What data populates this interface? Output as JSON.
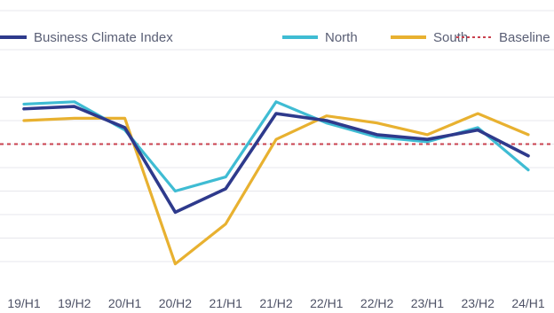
{
  "chart_data": {
    "type": "line",
    "title": "",
    "xlabel": "",
    "ylabel": "",
    "categories": [
      "19/H1",
      "19/H2",
      "20/H1",
      "20/H2",
      "21/H1",
      "21/H2",
      "22/H1",
      "22/H2",
      "23/H1",
      "23/H2",
      "24/H1"
    ],
    "ylim": [
      0,
      11
    ],
    "grid": true,
    "legend_position": "top",
    "series": [
      {
        "name": "Business Climate Index",
        "color": "#2e3a8c",
        "values": [
          6.5,
          6.6,
          5.7,
          2.1,
          3.1,
          6.3,
          6.0,
          5.4,
          5.2,
          5.6,
          4.5
        ]
      },
      {
        "name": "North",
        "color": "#3fbcd3",
        "values": [
          6.7,
          6.8,
          5.6,
          3.0,
          3.6,
          6.8,
          5.9,
          5.3,
          5.1,
          5.7,
          3.9
        ]
      },
      {
        "name": "South",
        "color": "#e8b130",
        "values": [
          6.0,
          6.1,
          6.1,
          -0.1,
          1.6,
          5.2,
          6.2,
          5.9,
          5.4,
          6.3,
          5.4
        ]
      }
    ],
    "reference_line": {
      "name": "Baseline",
      "value": 5.0,
      "color": "#c9414f",
      "style": "dashed"
    }
  }
}
